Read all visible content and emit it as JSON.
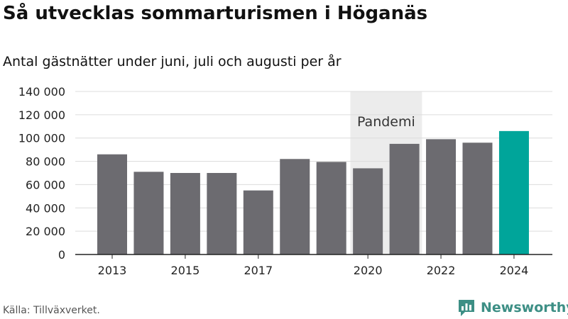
{
  "title": "Så utvecklas sommarturismen i Höganäs",
  "subtitle": "Antal gästnätter under juni, juli och augusti per år",
  "source": "Källa: Tillväxverket.",
  "brand": {
    "name": "Newsworthy",
    "icon": "newsworthy-logo-icon",
    "color": "#3d8f85"
  },
  "chart_data": {
    "type": "bar",
    "categories": [
      "2013",
      "2014",
      "2015",
      "2016",
      "2017",
      "2018",
      "2019",
      "2020",
      "2021",
      "2022",
      "2023",
      "2024"
    ],
    "x_tick_labels": [
      "2013",
      "2015",
      "2017",
      "2020",
      "2022",
      "2024"
    ],
    "values": [
      86000,
      71000,
      70000,
      70000,
      55000,
      82000,
      79500,
      74000,
      95000,
      99000,
      96000,
      106000
    ],
    "ylim": [
      0,
      140000
    ],
    "y_ticks": [
      0,
      20000,
      40000,
      60000,
      80000,
      100000,
      120000,
      140000
    ],
    "y_tick_labels": [
      "0",
      "20 000",
      "40 000",
      "60 000",
      "80 000",
      "100 000",
      "120 000",
      "140 000"
    ],
    "grid": true,
    "colors": {
      "bar": "#6c6b70",
      "highlight": "#00a59a",
      "band": "#ececec"
    },
    "highlight_category": "2024",
    "annotation": {
      "label": "Pandemi",
      "from": "2020",
      "to": "2021"
    }
  }
}
